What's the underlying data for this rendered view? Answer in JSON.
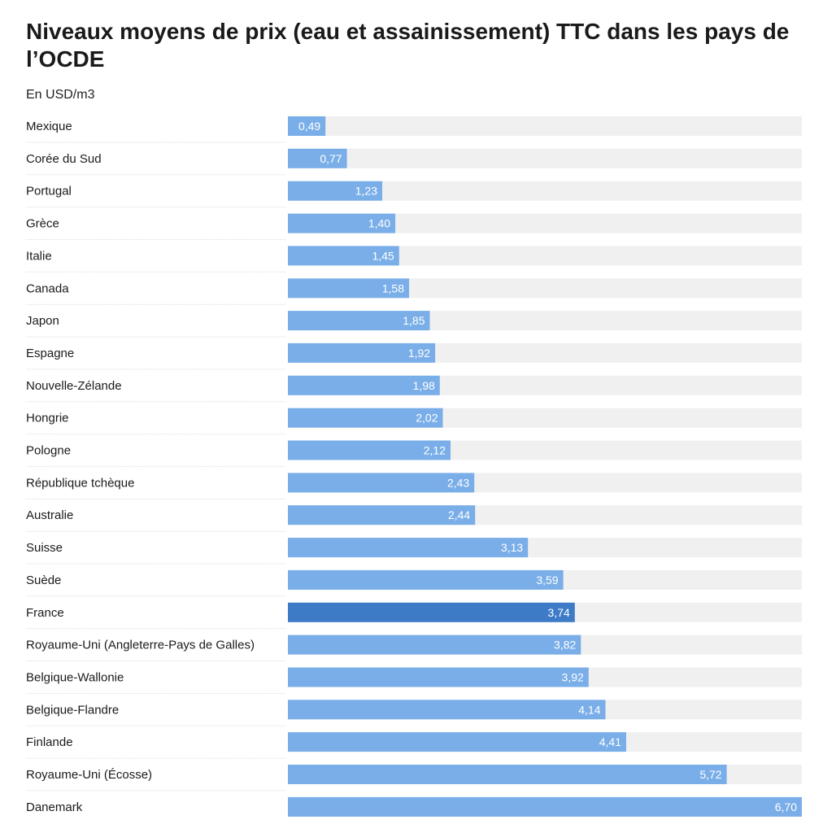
{
  "chart_data": {
    "type": "bar",
    "orientation": "horizontal",
    "title": "Niveaux moyens de prix (eau et assainissement) TTC dans les pays de l’OCDE",
    "subtitle": "En USD/m3",
    "categories": [
      "Mexique",
      "Corée du Sud",
      "Portugal",
      "Grèce",
      "Italie",
      "Canada",
      "Japon",
      "Espagne",
      "Nouvelle-Zélande",
      "Hongrie",
      "Pologne",
      "République tchèque",
      "Australie",
      "Suisse",
      "Suède",
      "France",
      "Royaume-Uni (Angleterre-Pays de Galles)",
      "Belgique-Wallonie",
      "Belgique-Flandre",
      "Finlande",
      "Royaume-Uni (Écosse)",
      "Danemark"
    ],
    "values": [
      0.49,
      0.77,
      1.23,
      1.4,
      1.45,
      1.58,
      1.85,
      1.92,
      1.98,
      2.02,
      2.12,
      2.43,
      2.44,
      3.13,
      3.59,
      3.74,
      3.82,
      3.92,
      4.14,
      4.41,
      5.72,
      6.7
    ],
    "value_labels": [
      "0,49",
      "0,77",
      "1,23",
      "1,40",
      "1,45",
      "1,58",
      "1,85",
      "1,92",
      "1,98",
      "2,02",
      "2,12",
      "2,43",
      "2,44",
      "3,13",
      "3,59",
      "3,74",
      "3,82",
      "3,92",
      "4,14",
      "4,41",
      "5,72",
      "6,70"
    ],
    "highlight": "France",
    "xlim": [
      0,
      6.7
    ],
    "grid": false,
    "legend": "none",
    "colors": {
      "bar": "#7aaee8",
      "highlight": "#3d7bc7",
      "track": "#f0f0f0",
      "separator": "#dedede",
      "value_text": "#ffffff"
    }
  }
}
